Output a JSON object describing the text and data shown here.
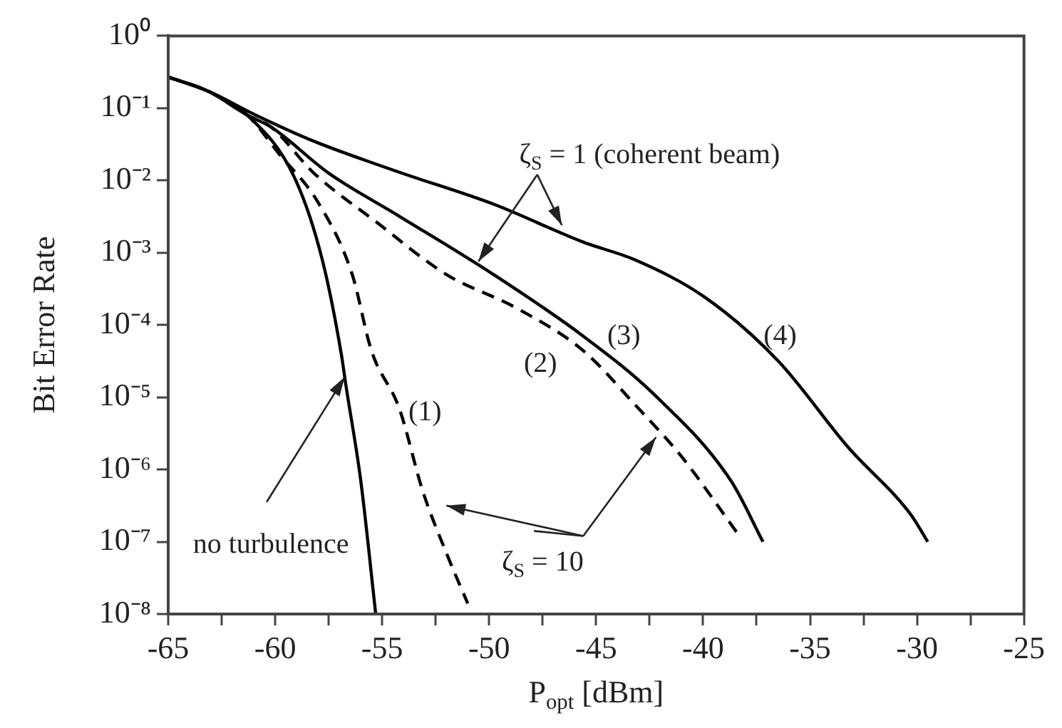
{
  "chart_data": {
    "type": "line",
    "xlabel": "P$_{opt}$ [dBm]",
    "ylabel": "Bit Error Rate",
    "log": "y",
    "grid": false,
    "legend": false,
    "marker": "none",
    "xlim": [
      -65,
      -25
    ],
    "ylim": [
      1e-08,
      1
    ],
    "xticks": [
      -65,
      {
        "value": -62.5,
        "label": null
      },
      -60,
      {
        "value": -57.5,
        "label": null
      },
      -55,
      {
        "value": -52.5,
        "label": null
      },
      -50,
      {
        "value": -47.5,
        "label": null
      },
      -45,
      {
        "value": -42.5,
        "label": null
      },
      -40,
      {
        "value": -37.5,
        "label": null
      },
      -35,
      {
        "value": -32.5,
        "label": null
      },
      -30,
      {
        "value": -27.5,
        "label": null
      },
      -25
    ],
    "yticks": [
      {
        "value": 1,
        "label": "10⁰"
      },
      {
        "value": 0.1,
        "label": "10⁻¹"
      },
      {
        "value": 0.01,
        "label": "10⁻²"
      },
      {
        "value": 0.001,
        "label": "10⁻³"
      },
      {
        "value": 0.0001,
        "label": "10⁻⁴"
      },
      {
        "value": 1e-05,
        "label": "10⁻⁵"
      },
      {
        "value": 1e-06,
        "label": "10⁻⁶"
      },
      {
        "value": 1e-07,
        "label": "10⁻⁷"
      },
      {
        "value": 1e-08,
        "label": "10⁻⁸"
      }
    ],
    "series": [
      {
        "color": "#000000",
        "line_style": "solid",
        "x": [
          -65,
          -63.1,
          -61.3,
          -59.1,
          -57.8,
          -56.9,
          -56.7,
          -56,
          -55.3
        ],
        "values": [
          0.27,
          0.17,
          0.08,
          0.011,
          0.0008,
          3.8e-05,
          1.5e-05,
          7e-07,
          1e-08
        ]
      },
      {
        "color": "#000000",
        "line_style": "dashed",
        "x": [
          -65,
          -63.1,
          -61.3,
          -59.8,
          -58,
          -56.4,
          -55.5,
          -54.2,
          -53.1,
          -52,
          -51
        ],
        "values": [
          0.27,
          0.17,
          0.08,
          0.023,
          0.005,
          0.0005,
          4.4e-05,
          7e-06,
          5e-07,
          7e-08,
          1.4e-08
        ]
      },
      {
        "color": "#000000",
        "line_style": "dashed",
        "x": [
          -65,
          -63.1,
          -61.3,
          -60.2,
          -58.2,
          -55.3,
          -52,
          -48.7,
          -45.6,
          -43.2,
          -41,
          -38.3
        ],
        "values": [
          0.27,
          0.17,
          0.08,
          0.055,
          0.0127,
          0.0027,
          0.0005,
          0.00017,
          4.4e-05,
          8e-06,
          1.5e-06,
          1.2e-07
        ]
      },
      {
        "color": "#000000",
        "line_style": "solid",
        "x": [
          -65,
          -63.1,
          -61.3,
          -60.2,
          -57.5,
          -54.2,
          -49.8,
          -45.6,
          -42.3,
          -38.7,
          -37.2
        ],
        "values": [
          0.27,
          0.17,
          0.08,
          0.055,
          0.0126,
          0.0032,
          0.0005,
          7e-05,
          1.1e-05,
          7e-07,
          1e-07
        ]
      },
      {
        "color": "#000000",
        "line_style": "solid",
        "x": [
          -65,
          -63.1,
          -60.9,
          -58.2,
          -54.2,
          -49.8,
          -45.6,
          -43.2,
          -39.9,
          -36.5,
          -33.2,
          -30.3,
          -29.5
        ],
        "values": [
          0.27,
          0.17,
          0.08,
          0.035,
          0.013,
          0.0047,
          0.0014,
          0.0008,
          0.00024,
          3.2e-05,
          2e-06,
          2.4e-07,
          1e-07
        ]
      }
    ],
    "annotations": [
      {
        "text": "ζ$_{S}$ = 1 (coherent beam)",
        "x": -46.6,
        "y": 0.0024
      },
      {
        "text": "ζ$_{S}$ = 10",
        "x": -42.2,
        "y": 2.8e-06
      },
      {
        "text": "no turbulence",
        "x": -56.75,
        "y": 1.9e-05
      },
      "(1)",
      "(2)",
      "(3)",
      "(4)"
    ]
  }
}
